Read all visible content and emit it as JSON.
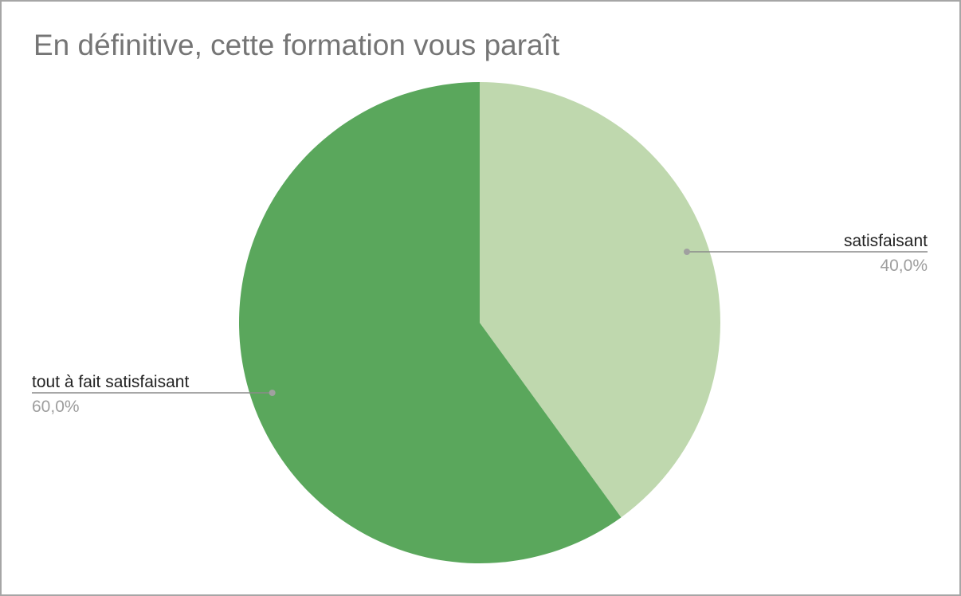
{
  "chart_data": {
    "type": "pie",
    "title": "En définitive, cette formation vous paraît",
    "slices": [
      {
        "label": "satisfaisant",
        "value": 40.0,
        "display": "40,0%",
        "color": "#bfd8ae"
      },
      {
        "label": "tout à fait satisfaisant",
        "value": 60.0,
        "display": "60,0%",
        "color": "#5aa75c"
      }
    ],
    "start_angle_deg": 0,
    "direction": "clockwise",
    "legend": "none",
    "label_style": "callout-lines"
  },
  "colors": {
    "leader_line": "#8a8a8a",
    "leader_dot": "#a0a0a0",
    "title": "#757575",
    "border": "#a6a6a6"
  }
}
